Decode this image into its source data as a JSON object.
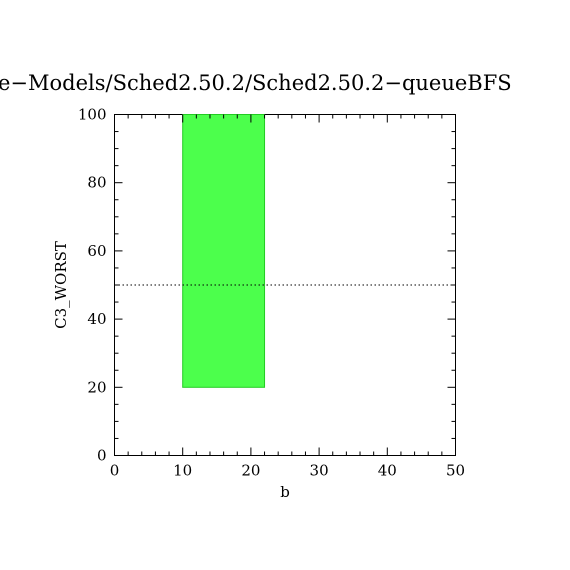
{
  "chart_data": {
    "type": "bar",
    "title": "e−Models/Sched2.50.2/Sched2.50.2−queueBFS",
    "xlabel": "b",
    "ylabel": "C3_WORST",
    "xlim": [
      0,
      50
    ],
    "ylim": [
      0,
      100
    ],
    "xticks": [
      0,
      10,
      20,
      30,
      40,
      50
    ],
    "yticks": [
      0,
      20,
      40,
      60,
      80,
      100
    ],
    "grid": false,
    "bars": [
      {
        "x_start": 10,
        "x_end": 22,
        "y_bottom": 20,
        "y_top": 100,
        "color": "#4cff4c"
      }
    ],
    "reference_line": {
      "y": 50,
      "style": "dotted"
    }
  },
  "colors": {
    "bar_fill": "#4cff4c",
    "bar_stroke": "#22cc22",
    "axis": "#000000"
  }
}
